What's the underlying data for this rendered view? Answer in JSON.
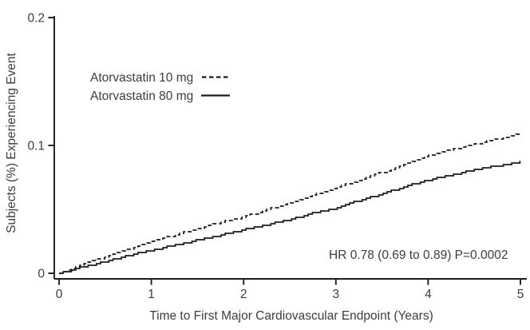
{
  "figure": {
    "background_color": "#ffffff",
    "text_color": "#3d3d3d",
    "line_color": "#1c1c1c"
  },
  "annotation": {
    "hazard_ratio_text": "HR 0.78 (0.69 to 0.89) P=0.0002"
  },
  "chart_data": {
    "type": "line",
    "subtype": "kaplan-meier-cumulative-incidence",
    "title": "",
    "xlabel": "Time to First Major Cardiovascular Endpoint (Years)",
    "ylabel": "Subjects (%) Experiencing Event",
    "xlim": [
      0,
      5
    ],
    "ylim": [
      0,
      0.2
    ],
    "x_ticks": [
      0,
      1,
      2,
      3,
      4,
      5
    ],
    "x_tick_labels": [
      "0",
      "1",
      "2",
      "3",
      "4",
      "5"
    ],
    "y_ticks": [
      0,
      0.1,
      0.2
    ],
    "y_tick_labels": [
      "0",
      "0.1",
      "0.2"
    ],
    "grid": false,
    "legend_position": "upper-left-inside",
    "annotation": "HR 0.78 (0.69 to 0.89) P=0.0002",
    "x": [
      0,
      0.25,
      0.5,
      0.75,
      1,
      1.25,
      1.5,
      1.75,
      2,
      2.25,
      2.5,
      2.75,
      3,
      3.25,
      3.5,
      3.75,
      4,
      4.25,
      4.5,
      4.75,
      5
    ],
    "series": [
      {
        "name": "Atorvastatin 10 mg",
        "line_style": "dashed",
        "values": [
          0,
          0.007,
          0.013,
          0.019,
          0.025,
          0.03,
          0.035,
          0.04,
          0.044,
          0.05,
          0.055,
          0.061,
          0.067,
          0.073,
          0.079,
          0.086,
          0.092,
          0.097,
          0.101,
          0.105,
          0.109
        ]
      },
      {
        "name": "Atorvastatin 80 mg",
        "line_style": "solid",
        "values": [
          0,
          0.005,
          0.009,
          0.014,
          0.018,
          0.022,
          0.026,
          0.03,
          0.034,
          0.038,
          0.042,
          0.047,
          0.051,
          0.057,
          0.062,
          0.068,
          0.073,
          0.077,
          0.081,
          0.084,
          0.087
        ]
      }
    ]
  }
}
